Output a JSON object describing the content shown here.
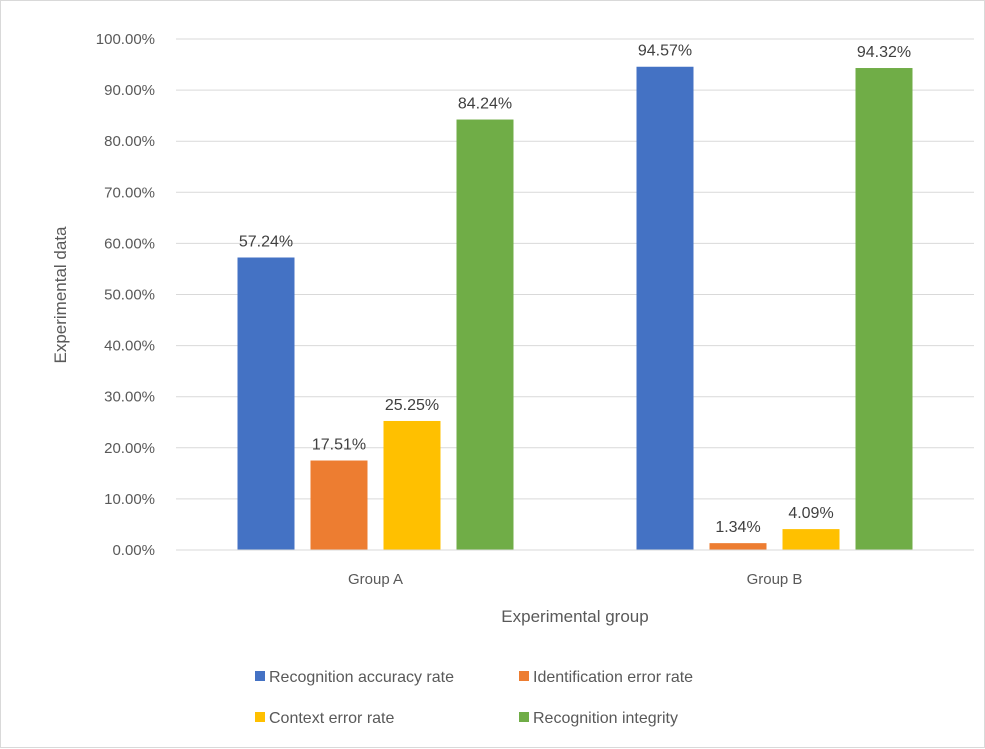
{
  "chart_data": {
    "type": "bar",
    "title": "",
    "xlabel": "Experimental group",
    "ylabel": "Experimental data",
    "categories": [
      "Group A",
      "Group B"
    ],
    "ylim": [
      0,
      100
    ],
    "ytick_step": 10,
    "ytick_format": "percent_2dp",
    "grid": true,
    "legend_position": "bottom",
    "series": [
      {
        "name": "Recognition accuracy rate",
        "color": "#4472c4",
        "values": [
          57.24,
          94.57
        ],
        "labels": [
          "57.24%",
          "94.57%"
        ]
      },
      {
        "name": "Identification error rate",
        "color": "#ed7d31",
        "values": [
          17.51,
          1.34
        ],
        "labels": [
          "17.51%",
          "1.34%"
        ]
      },
      {
        "name": "Context error rate",
        "color": "#ffc000",
        "values": [
          25.25,
          4.09
        ],
        "labels": [
          "25.25%",
          "4.09%"
        ]
      },
      {
        "name": "Recognition integrity",
        "color": "#70ad47",
        "values": [
          84.24,
          94.32
        ],
        "labels": [
          "84.24%",
          "94.32%"
        ]
      }
    ]
  }
}
